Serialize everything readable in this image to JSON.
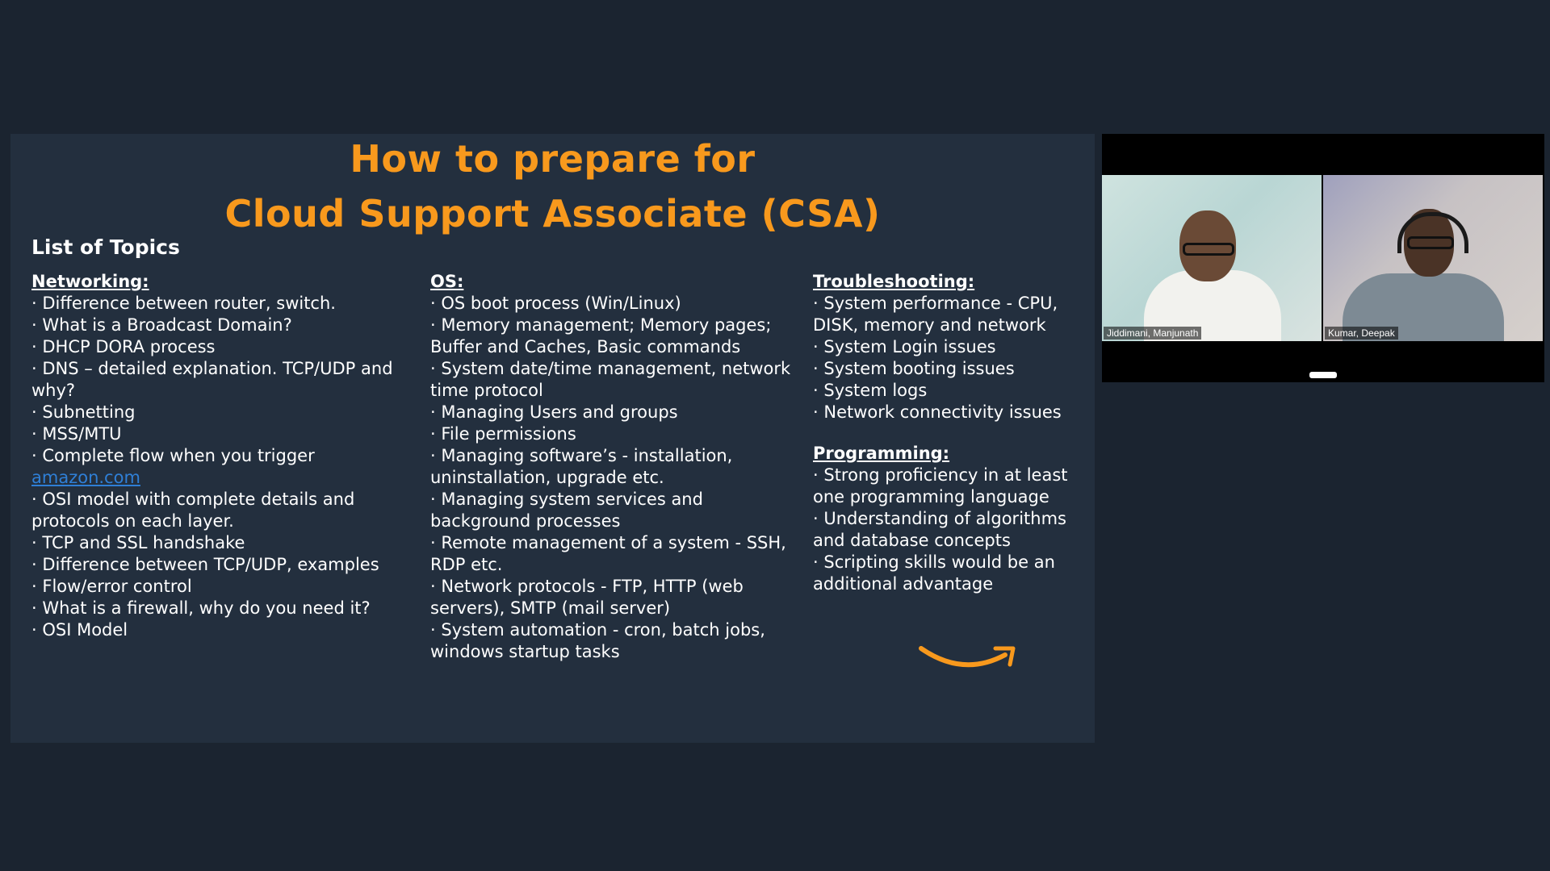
{
  "slide": {
    "title_line1": "How to prepare for",
    "title_line2": "Cloud Support Associate (CSA)",
    "list_heading": "List of Topics",
    "networking": {
      "heading": "Networking:",
      "items": [
        "Difference between router, switch.",
        "What is a Broadcast Domain?",
        "DHCP DORA process",
        "DNS – detailed explanation. TCP/UDP and why?",
        "Subnetting",
        "MSS/MTU",
        "Complete flow when you trigger",
        "amazon.com",
        " OSI model with complete details and protocols on each layer.",
        "TCP and SSL handshake",
        "Difference between TCP/UDP, examples",
        "Flow/error control",
        "What is a firewall, why do you need it?",
        "OSI Model"
      ]
    },
    "os": {
      "heading": "OS:",
      "items": [
        "OS boot process (Win/Linux)",
        " Memory management; Memory pages; Buffer and Caches, Basic commands",
        " System date/time management, network time protocol",
        "Managing Users and groups",
        "File permissions",
        "Managing software’s - installation, uninstallation, upgrade etc.",
        " Managing system services and background processes",
        "Remote management of a system - SSH, RDP etc.",
        "Network protocols - FTP, HTTP (web servers), SMTP (mail server)",
        "System automation - cron, batch jobs, windows startup tasks"
      ]
    },
    "troubleshooting": {
      "heading": "Troubleshooting:",
      "items": [
        "System performance - CPU, DISK, memory and network",
        "System Login issues",
        "System booting issues",
        "System logs",
        "Network connectivity issues"
      ]
    },
    "programming": {
      "heading": "Programming:",
      "items": [
        "Strong proficiency in at least one programming language",
        "Understanding of algorithms and database concepts",
        "Scripting skills would be an additional advantage"
      ]
    }
  },
  "video": {
    "participants": [
      {
        "name": "Jiddimani, Manjunath"
      },
      {
        "name": "Kumar, Deepak"
      }
    ]
  },
  "colors": {
    "background": "#1b2430",
    "slide_bg": "#232f3e",
    "title": "#f8991d",
    "link": "#2f7fd6"
  },
  "icons": {
    "logo": "amazon-smile-icon"
  }
}
